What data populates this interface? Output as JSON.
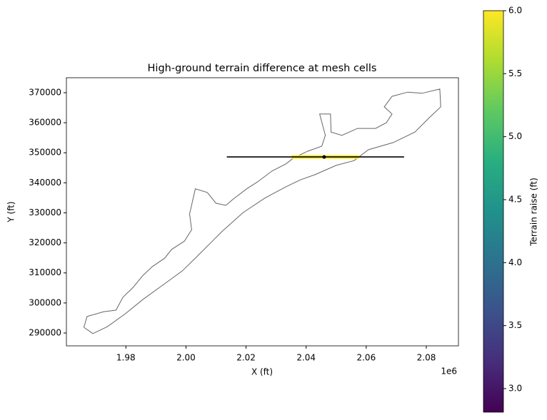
{
  "chart_data": {
    "type": "line",
    "title": "High-ground terrain difference at mesh cells",
    "xlabel": "X (ft)",
    "ylabel": "Y (ft)",
    "x_offset_label": "1e6",
    "xlim": [
      1.9602,
      2.0907
    ],
    "ylim": [
      285727,
      374985
    ],
    "xticks": [
      1.98,
      {
        "value": 2.0,
        "label": "2.00"
      },
      2.02,
      2.04,
      2.06,
      2.08
    ],
    "yticks": [
      290000,
      300000,
      310000,
      320000,
      330000,
      340000,
      350000,
      360000,
      370000
    ],
    "outline": {
      "color": "#666666",
      "x": [
        1.966,
        1.9671,
        1.9726,
        1.9767,
        1.979,
        1.9824,
        1.9857,
        1.9888,
        1.9929,
        1.9952,
        1.9995,
        2.0019,
        2.0012,
        2.0031,
        2.0071,
        2.01,
        2.0133,
        2.0155,
        2.0202,
        2.0238,
        2.0286,
        2.0333,
        2.0357,
        2.0405,
        2.0452,
        2.0464,
        2.0445,
        2.0481,
        2.0483,
        2.0519,
        2.0571,
        2.0631,
        2.0667,
        2.0686,
        2.066,
        2.0686,
        2.0738,
        2.0786,
        2.0845,
        2.0848,
        2.081,
        2.0762,
        2.069,
        2.0607,
        2.056,
        2.05,
        2.0429,
        2.0381,
        2.0333,
        2.0262,
        2.019,
        2.0119,
        2.0083,
        2.0036,
        1.9988,
        1.9929,
        1.9857,
        1.9798,
        1.9738,
        1.969,
        1.966
      ],
      "y": [
        291900,
        295500,
        297100,
        297600,
        301900,
        305200,
        309200,
        312100,
        314900,
        317800,
        320600,
        324400,
        329600,
        338000,
        336800,
        333200,
        332500,
        334400,
        338000,
        340300,
        343900,
        346300,
        348200,
        350500,
        352200,
        355800,
        362900,
        362900,
        356900,
        355800,
        358100,
        358100,
        360000,
        362900,
        365300,
        368800,
        370200,
        369800,
        371200,
        365300,
        361700,
        356900,
        353400,
        351000,
        347400,
        345800,
        342700,
        341000,
        338700,
        334900,
        330100,
        323700,
        320100,
        315400,
        310700,
        306400,
        301200,
        296400,
        292100,
        289800,
        291900
      ]
    },
    "cells": {
      "x": [
        2.0352,
        2.0576
      ],
      "y": [
        348600,
        348600
      ],
      "value": 6.0,
      "color": "#fde725"
    },
    "transect": {
      "x": [
        2.0136,
        2.0726
      ],
      "y": [
        348600,
        348600
      ],
      "color": "#000000"
    },
    "point": {
      "x": 2.046,
      "y": 348600,
      "color": "#000000"
    },
    "colorbar": {
      "label": "Terrain raise (ft)",
      "lim": [
        2.813,
        6.0
      ],
      "ticks": [
        {
          "value": 3.0,
          "label": "3.0"
        },
        3.5,
        {
          "value": 4.0,
          "label": "4.0"
        },
        4.5,
        {
          "value": 5.0,
          "label": "5.0"
        },
        5.5,
        {
          "value": 6.0,
          "label": "6.0"
        }
      ]
    }
  }
}
